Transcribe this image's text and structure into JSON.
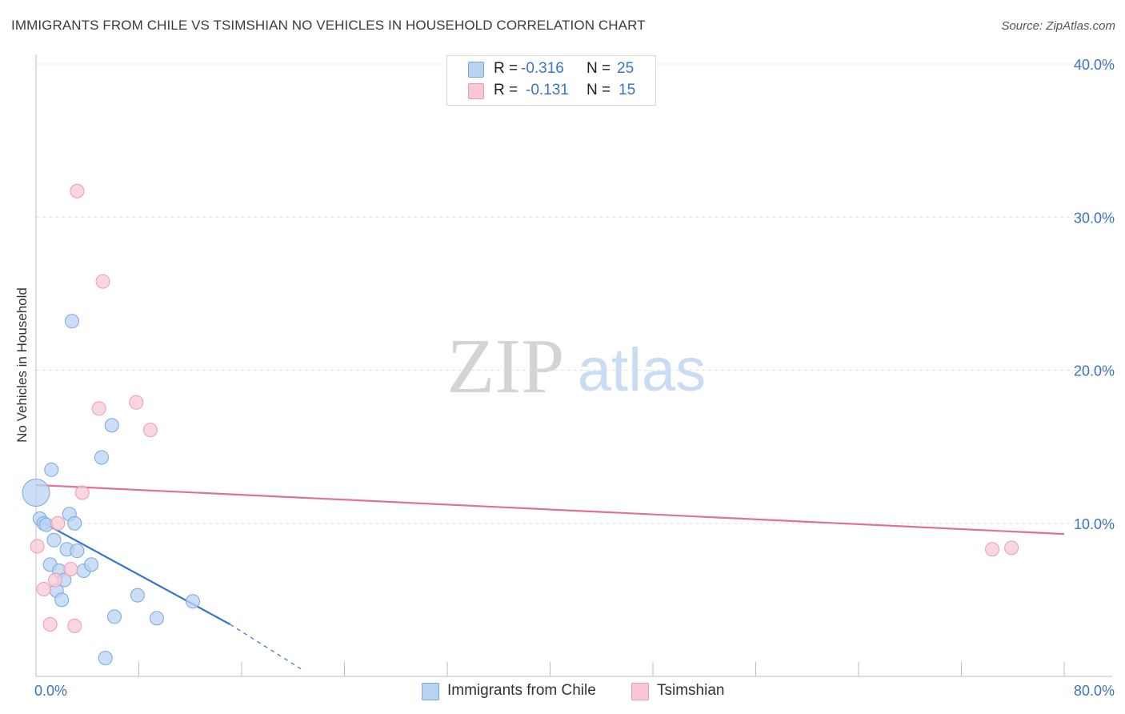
{
  "header": {
    "title": "IMMIGRANTS FROM CHILE VS TSIMSHIAN NO VEHICLES IN HOUSEHOLD CORRELATION CHART",
    "source": "Source: ZipAtlas.com"
  },
  "watermark": {
    "zip": "ZIP",
    "atlas": "atlas"
  },
  "colors": {
    "blue_fill": "#b9d3f3",
    "blue_stroke": "#7aa7de",
    "blue_line": "#3474d4",
    "pink_fill": "#f8c8d6",
    "pink_stroke": "#ec9ab3",
    "pink_line": "#e0709a",
    "tick_label": "#3a73c8",
    "grid": "#e0e0e0"
  },
  "legend_top": {
    "rows": [
      {
        "r_label": "R =",
        "r_value": "-0.316",
        "n_label": "N =",
        "n_value": "25"
      },
      {
        "r_label": "R =",
        "r_value": "-0.131",
        "n_label": "N =",
        "n_value": "15"
      }
    ]
  },
  "legend_bottom": {
    "items": [
      {
        "label": "Immigrants from Chile"
      },
      {
        "label": "Tsimshian"
      }
    ]
  },
  "chart_data": {
    "type": "scatter",
    "title": "IMMIGRANTS FROM CHILE VS TSIMSHIAN NO VEHICLES IN HOUSEHOLD CORRELATION CHART",
    "xlabel": "",
    "ylabel": "No Vehicles in Household",
    "xlim": [
      0,
      80
    ],
    "ylim": [
      0,
      40
    ],
    "x_tick_labels": [
      "0.0%",
      "80.0%"
    ],
    "y_ticks": [
      10,
      20,
      30,
      40
    ],
    "y_tick_labels": [
      "10.0%",
      "20.0%",
      "30.0%",
      "40.0%"
    ],
    "grid": true,
    "series": [
      {
        "name": "Immigrants from Chile",
        "r": -0.316,
        "n": 25,
        "points": [
          {
            "x": 0.0,
            "y": 12.0,
            "big": true
          },
          {
            "x": 0.3,
            "y": 10.3
          },
          {
            "x": 0.6,
            "y": 10.0
          },
          {
            "x": 0.8,
            "y": 9.9
          },
          {
            "x": 1.1,
            "y": 7.3
          },
          {
            "x": 1.2,
            "y": 13.5
          },
          {
            "x": 1.4,
            "y": 8.9
          },
          {
            "x": 1.6,
            "y": 5.6
          },
          {
            "x": 1.8,
            "y": 6.9
          },
          {
            "x": 2.0,
            "y": 5.0
          },
          {
            "x": 2.2,
            "y": 6.3
          },
          {
            "x": 2.4,
            "y": 8.3
          },
          {
            "x": 2.6,
            "y": 10.6
          },
          {
            "x": 2.8,
            "y": 23.2
          },
          {
            "x": 3.0,
            "y": 10.0
          },
          {
            "x": 3.2,
            "y": 8.2
          },
          {
            "x": 3.7,
            "y": 6.9
          },
          {
            "x": 4.3,
            "y": 7.3
          },
          {
            "x": 5.1,
            "y": 14.3
          },
          {
            "x": 5.4,
            "y": 1.2
          },
          {
            "x": 5.9,
            "y": 16.4
          },
          {
            "x": 6.1,
            "y": 3.9
          },
          {
            "x": 7.9,
            "y": 5.3
          },
          {
            "x": 9.4,
            "y": 3.8
          },
          {
            "x": 12.2,
            "y": 4.9
          }
        ],
        "trend": {
          "x_start": 0.2,
          "y_start": 10.2,
          "x_solid_end": 15.1,
          "y_solid_end": 3.4,
          "x_dash_end": 20.6,
          "y_dash_end": 0.5
        }
      },
      {
        "name": "Tsimshian",
        "r": -0.131,
        "n": 15,
        "points": [
          {
            "x": 0.1,
            "y": 8.5
          },
          {
            "x": 0.6,
            "y": 5.7
          },
          {
            "x": 1.1,
            "y": 3.4
          },
          {
            "x": 1.5,
            "y": 6.3
          },
          {
            "x": 1.7,
            "y": 10.0
          },
          {
            "x": 2.7,
            "y": 7.0
          },
          {
            "x": 3.0,
            "y": 3.3
          },
          {
            "x": 3.2,
            "y": 31.7
          },
          {
            "x": 3.6,
            "y": 12.0
          },
          {
            "x": 4.9,
            "y": 17.5
          },
          {
            "x": 5.2,
            "y": 25.8
          },
          {
            "x": 7.8,
            "y": 17.9
          },
          {
            "x": 8.9,
            "y": 16.1
          },
          {
            "x": 74.4,
            "y": 8.3
          },
          {
            "x": 75.9,
            "y": 8.4
          }
        ],
        "trend": {
          "x_start": 0.0,
          "y_start": 12.5,
          "x_end": 80.0,
          "y_end": 9.3
        }
      }
    ]
  }
}
